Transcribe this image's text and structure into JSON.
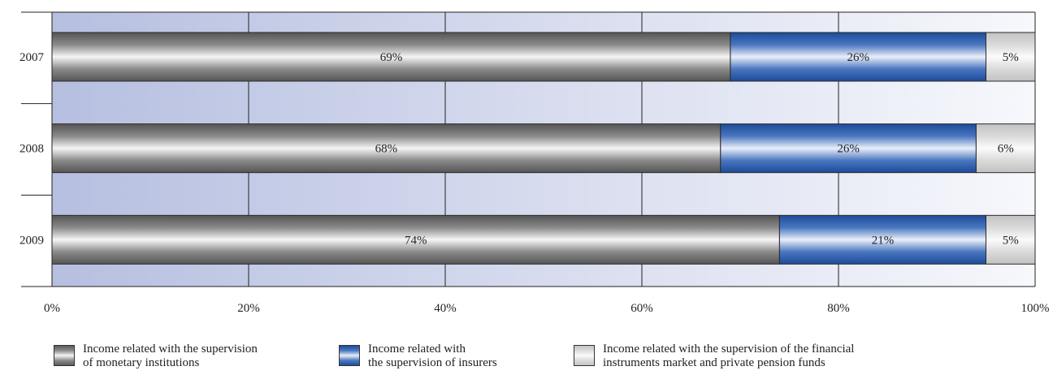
{
  "chart_data": {
    "type": "bar",
    "orientation": "horizontal",
    "stacked": true,
    "categories": [
      "2007",
      "2008",
      "2009"
    ],
    "series": [
      {
        "name": "Income related with the supervision of monetary institutions",
        "values": [
          69,
          68,
          74
        ],
        "labels": [
          "69%",
          "68%",
          "74%"
        ],
        "color": "#7a7a7a"
      },
      {
        "name": "Income related with the supervision of insurers",
        "values": [
          26,
          26,
          21
        ],
        "labels": [
          "26%",
          "26%",
          "21%"
        ],
        "color": "#2f5fae"
      },
      {
        "name": "Income related with the supervision of the financial instruments market and private pension funds",
        "values": [
          5,
          6,
          5
        ],
        "labels": [
          "5%",
          "6%",
          "5%"
        ],
        "color": "#d6d6d6"
      }
    ],
    "xlim": [
      0,
      100
    ],
    "x_ticks": [
      "0%",
      "20%",
      "40%",
      "60%",
      "80%",
      "100%"
    ],
    "grid": true
  },
  "legend": {
    "items": [
      {
        "text": "Income related with the supervision\nof monetary institutions"
      },
      {
        "text": "Income related with\nthe supervision of insurers"
      },
      {
        "text": "Income related with the supervision of the financial\ninstruments market and private pension funds"
      }
    ]
  }
}
